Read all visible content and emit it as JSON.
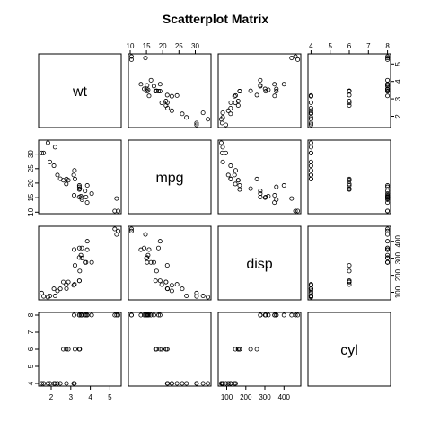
{
  "chart_data": {
    "type": "scatter",
    "title": "Scatterplot Matrix",
    "variables": [
      "wt",
      "mpg",
      "disp",
      "cyl"
    ],
    "ranges": {
      "wt": [
        1.513,
        5.424
      ],
      "mpg": [
        10.4,
        33.9
      ],
      "disp": [
        71.1,
        472
      ],
      "cyl": [
        4,
        8
      ]
    },
    "ticks": {
      "wt": {
        "values": [
          2,
          3,
          4,
          5
        ],
        "labels": [
          "2",
          "3",
          "4",
          "5"
        ]
      },
      "mpg": {
        "values": [
          10,
          15,
          20,
          25,
          30
        ],
        "labels": [
          "10",
          "15",
          "20",
          "25",
          "30"
        ]
      },
      "disp": {
        "values": [
          100,
          200,
          300,
          400
        ],
        "labels": [
          "100",
          "200",
          "300",
          "400"
        ]
      },
      "cyl": {
        "values": [
          4,
          5,
          6,
          7,
          8
        ],
        "labels": [
          "4",
          "5",
          "6",
          "7",
          "8"
        ]
      }
    },
    "grid": false,
    "rows": [
      {
        "wt": 2.62,
        "mpg": 21.0,
        "disp": 160.0,
        "cyl": 6
      },
      {
        "wt": 2.875,
        "mpg": 21.0,
        "disp": 160.0,
        "cyl": 6
      },
      {
        "wt": 2.32,
        "mpg": 22.8,
        "disp": 108.0,
        "cyl": 4
      },
      {
        "wt": 3.215,
        "mpg": 21.4,
        "disp": 258.0,
        "cyl": 6
      },
      {
        "wt": 3.44,
        "mpg": 18.7,
        "disp": 360.0,
        "cyl": 8
      },
      {
        "wt": 3.46,
        "mpg": 18.1,
        "disp": 225.0,
        "cyl": 6
      },
      {
        "wt": 3.57,
        "mpg": 14.3,
        "disp": 360.0,
        "cyl": 8
      },
      {
        "wt": 3.19,
        "mpg": 24.4,
        "disp": 146.7,
        "cyl": 4
      },
      {
        "wt": 3.15,
        "mpg": 22.8,
        "disp": 140.8,
        "cyl": 4
      },
      {
        "wt": 3.44,
        "mpg": 19.2,
        "disp": 167.6,
        "cyl": 6
      },
      {
        "wt": 3.44,
        "mpg": 17.8,
        "disp": 167.6,
        "cyl": 6
      },
      {
        "wt": 4.07,
        "mpg": 16.4,
        "disp": 275.8,
        "cyl": 8
      },
      {
        "wt": 3.73,
        "mpg": 17.3,
        "disp": 275.8,
        "cyl": 8
      },
      {
        "wt": 3.78,
        "mpg": 15.2,
        "disp": 275.8,
        "cyl": 8
      },
      {
        "wt": 5.25,
        "mpg": 10.4,
        "disp": 472.0,
        "cyl": 8
      },
      {
        "wt": 5.424,
        "mpg": 10.4,
        "disp": 460.0,
        "cyl": 8
      },
      {
        "wt": 5.345,
        "mpg": 14.7,
        "disp": 440.0,
        "cyl": 8
      },
      {
        "wt": 2.2,
        "mpg": 32.4,
        "disp": 78.7,
        "cyl": 4
      },
      {
        "wt": 1.615,
        "mpg": 30.4,
        "disp": 75.7,
        "cyl": 4
      },
      {
        "wt": 1.835,
        "mpg": 33.9,
        "disp": 71.1,
        "cyl": 4
      },
      {
        "wt": 2.465,
        "mpg": 21.5,
        "disp": 120.1,
        "cyl": 4
      },
      {
        "wt": 3.52,
        "mpg": 15.5,
        "disp": 318.0,
        "cyl": 8
      },
      {
        "wt": 3.435,
        "mpg": 15.2,
        "disp": 304.0,
        "cyl": 8
      },
      {
        "wt": 3.84,
        "mpg": 13.3,
        "disp": 350.0,
        "cyl": 8
      },
      {
        "wt": 3.845,
        "mpg": 19.2,
        "disp": 400.0,
        "cyl": 8
      },
      {
        "wt": 1.935,
        "mpg": 27.3,
        "disp": 79.0,
        "cyl": 4
      },
      {
        "wt": 2.14,
        "mpg": 26.0,
        "disp": 120.3,
        "cyl": 4
      },
      {
        "wt": 1.513,
        "mpg": 30.4,
        "disp": 95.1,
        "cyl": 4
      },
      {
        "wt": 3.17,
        "mpg": 15.8,
        "disp": 351.0,
        "cyl": 8
      },
      {
        "wt": 2.77,
        "mpg": 19.7,
        "disp": 145.0,
        "cyl": 6
      },
      {
        "wt": 3.57,
        "mpg": 15.0,
        "disp": 301.0,
        "cyl": 8
      },
      {
        "wt": 2.78,
        "mpg": 21.4,
        "disp": 121.0,
        "cyl": 4
      }
    ]
  }
}
